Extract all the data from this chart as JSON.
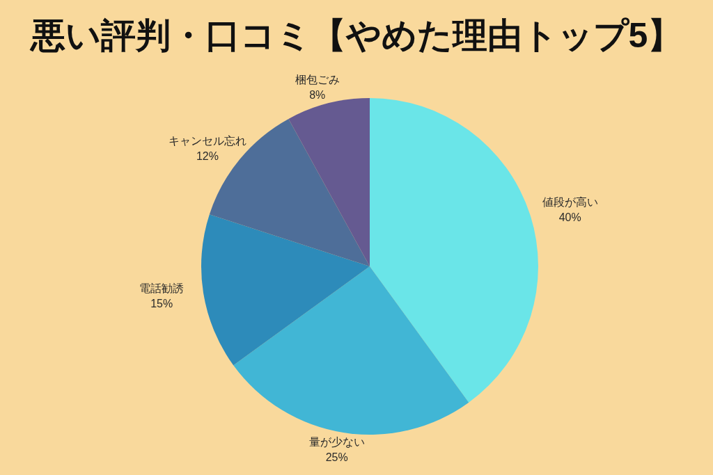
{
  "chart_data": {
    "type": "pie",
    "title": "悪い評判・口コミ【やめた理由トップ5】",
    "categories": [
      "値段が高い",
      "量が少ない",
      "電話勧誘",
      "キャンセル忘れ",
      "梱包ごみ"
    ],
    "values": [
      40,
      25,
      15,
      12,
      8
    ],
    "colors": [
      "#6ae5e8",
      "#41b6d5",
      "#2d8bba",
      "#4e6e99",
      "#655a91"
    ],
    "value_labels": [
      "40%",
      "25%",
      "15%",
      "12%",
      "8%"
    ]
  }
}
